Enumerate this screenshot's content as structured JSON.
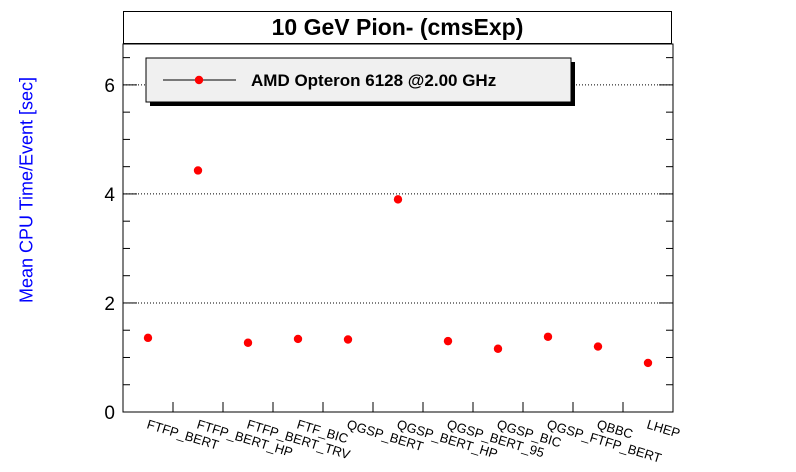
{
  "chart_data": {
    "type": "scatter",
    "title": "10 GeV Pion- (cmsExp)",
    "xlabel": "",
    "ylabel": "Mean CPU Time/Event [sec]",
    "categories": [
      "FTFP_BERT",
      "FTFP_BERT_HP",
      "FTFP_BERT_TRV",
      "FTF_BIC",
      "QGSP_BERT",
      "QGSP_BERT_HP",
      "QGSP_BERT_95",
      "QGSP_BIC",
      "QGSP_FTFP_BERT",
      "QBBC",
      "LHEP"
    ],
    "series": [
      {
        "name": "AMD Opteron 6128 @2.00 GHz",
        "color": "#ff0000",
        "values": [
          1.36,
          4.43,
          1.27,
          1.34,
          1.33,
          3.9,
          1.3,
          1.16,
          1.38,
          1.2,
          0.9
        ]
      }
    ],
    "ylim": [
      0,
      6.75
    ],
    "yticks": [
      0,
      2,
      4,
      6
    ],
    "grid": true,
    "legend_position": "top-left"
  },
  "colors": {
    "axis_label": "#0000ff",
    "marker": "#ff0000",
    "grid": "#000000",
    "legend_bg": "#f0f0f0"
  }
}
